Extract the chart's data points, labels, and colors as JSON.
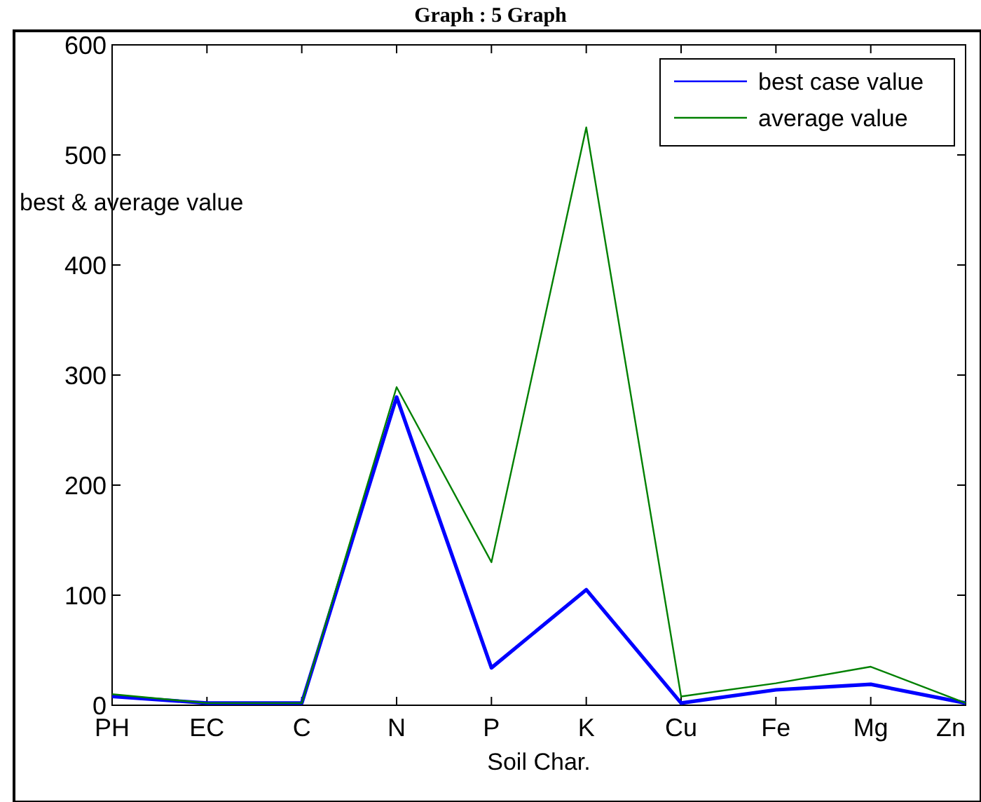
{
  "chart_data": {
    "type": "line",
    "title": "Graph : 5 Graph",
    "xlabel": "Soil Char.",
    "ylabel": "best & average value",
    "categories": [
      "PH",
      "EC",
      "C",
      "N",
      "P",
      "K",
      "Cu",
      "Fe",
      "Mg",
      "Zn"
    ],
    "series": [
      {
        "name": "best case value",
        "color": "#0000ff",
        "values": [
          8,
          2,
          2,
          280,
          34,
          105,
          2,
          14,
          19,
          2
        ]
      },
      {
        "name": "average value",
        "color": "#008000",
        "values": [
          10,
          2,
          2,
          289,
          130,
          525,
          8,
          20,
          35,
          2
        ]
      }
    ],
    "ylim": [
      0,
      600
    ],
    "yticks": [
      0,
      100,
      200,
      300,
      400,
      500,
      600
    ],
    "grid": false,
    "legend": "top right",
    "marker": "none",
    "line_style": "solid"
  }
}
